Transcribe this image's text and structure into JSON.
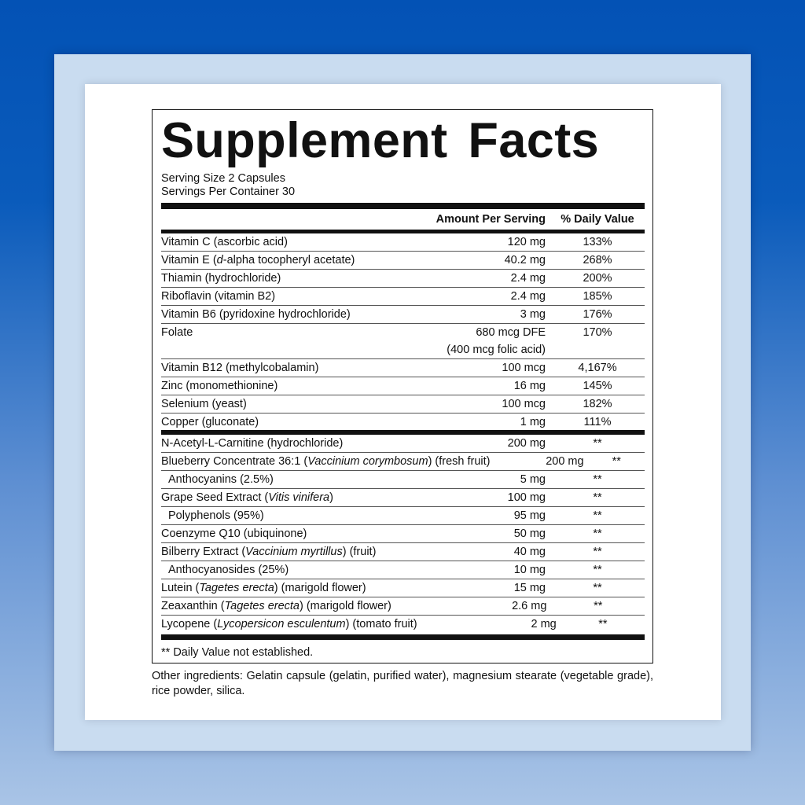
{
  "title": "Supplement Facts",
  "serving_size": "Serving Size 2 Capsules",
  "servings_per_container": "Servings Per Container 30",
  "headers": {
    "amount": "Amount Per Serving",
    "dv": "% Daily Value"
  },
  "vitamins": [
    {
      "pre": "Vitamin C (ascorbic acid)",
      "amount": "120 mg",
      "dv": "133%"
    },
    {
      "pre": "Vitamin E (",
      "ital": "d",
      "post": "-alpha tocopheryl acetate)",
      "amount": "40.2 mg",
      "dv": "268%"
    },
    {
      "pre": "Thiamin (hydrochloride)",
      "amount": "2.4 mg",
      "dv": "200%"
    },
    {
      "pre": "Riboflavin (vitamin B2)",
      "amount": "2.4 mg",
      "dv": "185%"
    },
    {
      "pre": "Vitamin B6 (pyridoxine hydrochloride)",
      "amount": "3 mg",
      "dv": "176%"
    },
    {
      "pre": "Folate",
      "amount": "680 mcg DFE",
      "amount2": "(400 mcg folic acid)",
      "dv": "170%"
    },
    {
      "pre": "Vitamin B12 (methylcobalamin)",
      "amount": "100 mcg",
      "dv": "4,167%"
    },
    {
      "pre": "Zinc (monomethionine)",
      "amount": "16 mg",
      "dv": "145%"
    },
    {
      "pre": "Selenium (yeast)",
      "amount": "100 mcg",
      "dv": "182%"
    },
    {
      "pre": "Copper (gluconate)",
      "amount": "1 mg",
      "dv": "111%"
    }
  ],
  "others": [
    {
      "pre": "N-Acetyl-L-Carnitine (hydrochloride)",
      "amount": "200 mg",
      "dv": "**"
    },
    {
      "pre": "Blueberry Concentrate 36:1 (",
      "ital": "Vaccinium corymbosum",
      "post": ") (fresh fruit)",
      "amount": "200 mg",
      "dv": "**"
    },
    {
      "pre": "Anthocyanins (2.5%)",
      "sub": true,
      "amount": "5 mg",
      "dv": "**"
    },
    {
      "pre": "Grape Seed Extract (",
      "ital": "Vitis vinifera",
      "post": ")",
      "amount": "100 mg",
      "dv": "**"
    },
    {
      "pre": "Polyphenols (95%)",
      "sub": true,
      "amount": "95 mg",
      "dv": "**"
    },
    {
      "pre": "Coenzyme Q10 (ubiquinone)",
      "amount": "50 mg",
      "dv": "**"
    },
    {
      "pre": "Bilberry Extract (",
      "ital": "Vaccinium myrtillus",
      "post": ") (fruit)",
      "amount": "40 mg",
      "dv": "**"
    },
    {
      "pre": "Anthocyanosides (25%)",
      "sub": true,
      "amount": "10 mg",
      "dv": "**"
    },
    {
      "pre": "Lutein (",
      "ital": "Tagetes erecta",
      "post": ") (marigold flower)",
      "amount": "15 mg",
      "dv": "**"
    },
    {
      "pre": "Zeaxanthin (",
      "ital": "Tagetes erecta",
      "post": ") (marigold flower)",
      "amount": "2.6 mg",
      "dv": "**"
    },
    {
      "pre": "Lycopene (",
      "ital": "Lycopersicon esculentum",
      "post": ") (tomato fruit)",
      "amount": "2 mg",
      "dv": "**"
    }
  ],
  "footnote": "** Daily Value not established.",
  "other_ingredients": "Other ingredients: Gelatin capsule (gelatin, purified water), magnesium stearate (vegetable grade), rice powder, silica."
}
